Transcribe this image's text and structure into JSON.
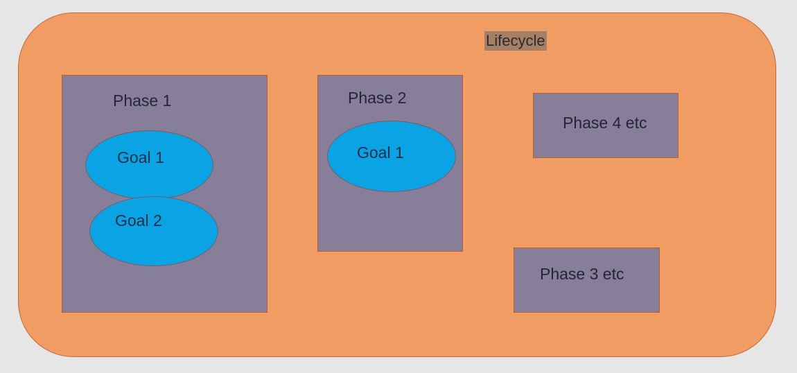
{
  "diagram": {
    "container_label": "Lifecycle",
    "phases": [
      {
        "label": "Phase 1",
        "goals": [
          "Goal 1",
          "Goal 2"
        ]
      },
      {
        "label": "Phase 2",
        "goals": [
          "Goal 1"
        ]
      },
      {
        "label": "Phase 4 etc",
        "goals": []
      },
      {
        "label": "Phase 3 etc",
        "goals": []
      }
    ]
  },
  "colors": {
    "background": "#e6e6e6",
    "lifecycle_fill": "#f19c63",
    "phase_fill": "#877e99",
    "goal_fill": "#0aa3e4"
  }
}
